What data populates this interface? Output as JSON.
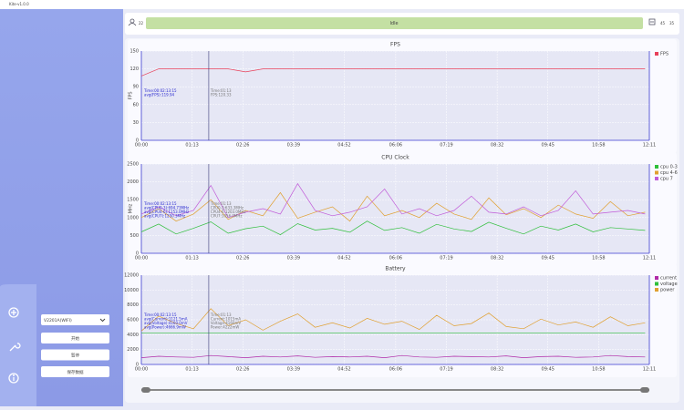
{
  "window": {
    "title": "Kite-v1.0.0"
  },
  "topbar": {
    "status": "Idle",
    "left_value": "22",
    "right_values": [
      "45",
      "35"
    ]
  },
  "sidebar": {
    "device": "V2201A(WIFI)",
    "buttons": [
      "开始",
      "暂停",
      "保存数据"
    ]
  },
  "chart_data": [
    {
      "type": "line",
      "title": "FPS",
      "ylabel": "FPS",
      "ylim": [
        0,
        150
      ],
      "yticks": [
        0,
        30,
        60,
        90,
        120,
        150
      ],
      "xlim": [
        0,
        731
      ],
      "xticks": [
        {
          "value": 0,
          "label": "00:00"
        },
        {
          "value": 73,
          "label": "01:13"
        },
        {
          "value": 146,
          "label": "02:26"
        },
        {
          "value": 219,
          "label": "03:39"
        },
        {
          "value": 292,
          "label": "04:52"
        },
        {
          "value": 366,
          "label": "06:06"
        },
        {
          "value": 439,
          "label": "07:19"
        },
        {
          "value": 512,
          "label": "08:32"
        },
        {
          "value": 585,
          "label": "09:45"
        },
        {
          "value": 658,
          "label": "10:58"
        },
        {
          "value": 731,
          "label": "12:11"
        }
      ],
      "cursor": 97,
      "grid": true,
      "x": [
        0,
        25,
        50,
        75,
        100,
        125,
        150,
        175,
        200,
        225,
        250,
        275,
        300,
        325,
        350,
        375,
        400,
        425,
        450,
        475,
        500,
        525,
        550,
        575,
        600,
        625,
        650,
        675,
        700,
        725
      ],
      "series": [
        {
          "name": "FPS",
          "color": "#e8405a",
          "values": [
            108,
            120,
            120,
            120,
            120,
            120,
            115,
            120,
            120,
            120,
            120,
            120,
            120,
            120,
            120,
            120,
            120,
            120,
            120,
            120,
            120,
            120,
            120,
            120,
            120,
            120,
            120,
            120,
            120,
            120
          ]
        }
      ],
      "annotations": [
        [
          "Time:00:02:13:15",
          "avg(FPS):119.94"
        ],
        [
          "Time:01:13",
          "FPS:120.33"
        ]
      ]
    },
    {
      "type": "line",
      "title": "CPU Clock",
      "ylabel": "MHz",
      "ylim": [
        0,
        2500
      ],
      "yticks": [
        0,
        500,
        1000,
        1500,
        2000,
        2500
      ],
      "xlim": [
        0,
        731
      ],
      "xticks": [
        {
          "value": 0,
          "label": "00:00"
        },
        {
          "value": 73,
          "label": "01:13"
        },
        {
          "value": 146,
          "label": "02:26"
        },
        {
          "value": 219,
          "label": "03:39"
        },
        {
          "value": 292,
          "label": "04:52"
        },
        {
          "value": 366,
          "label": "06:06"
        },
        {
          "value": 439,
          "label": "07:19"
        },
        {
          "value": 512,
          "label": "08:32"
        },
        {
          "value": 585,
          "label": "09:45"
        },
        {
          "value": 658,
          "label": "10:58"
        },
        {
          "value": 731,
          "label": "12:11"
        }
      ],
      "cursor": 97,
      "grid": true,
      "x": [
        0,
        25,
        50,
        75,
        100,
        125,
        150,
        175,
        200,
        225,
        250,
        275,
        300,
        325,
        350,
        375,
        400,
        425,
        450,
        475,
        500,
        525,
        550,
        575,
        600,
        625,
        650,
        675,
        700,
        725
      ],
      "series": [
        {
          "name": "cpu 0-3",
          "color": "#2fbf3a",
          "values": [
            600,
            820,
            540,
            700,
            880,
            560,
            690,
            760,
            520,
            830,
            650,
            700,
            590,
            900,
            640,
            720,
            560,
            810,
            680,
            610,
            870,
            700,
            540,
            760,
            650,
            820,
            600,
            720,
            680,
            640
          ]
        },
        {
          "name": "cpu 4-6",
          "color": "#e0a030",
          "values": [
            1000,
            1250,
            900,
            1100,
            1500,
            950,
            1200,
            1050,
            1700,
            980,
            1150,
            1300,
            900,
            1600,
            1050,
            1200,
            1000,
            1400,
            1100,
            950,
            1550,
            1080,
            1250,
            1000,
            1350,
            1100,
            980,
            1450,
            1050,
            1150
          ]
        },
        {
          "name": "cpu 7",
          "color": "#c05ad8",
          "values": [
            1100,
            1300,
            1050,
            1200,
            1900,
            1000,
            1150,
            1250,
            1100,
            1950,
            1200,
            1050,
            1150,
            1300,
            1800,
            1100,
            1250,
            1050,
            1200,
            1600,
            1150,
            1100,
            1300,
            1050,
            1200,
            1750,
            1100,
            1150,
            1200,
            1100
          ]
        }
      ],
      "annotations": [
        [
          "Time:00:02:13:15",
          "avg(CPU0-3):694.73MHz",
          "avg(CPU4-6):1153.0MHz",
          "avg(CPU7):1250.3MHz"
        ],
        [
          "Time:01:13",
          "CPU0-3:633.3MHz",
          "CPU4-6:1203.0MHz",
          "CPU7:1056.0MHz"
        ]
      ]
    },
    {
      "type": "line",
      "title": "Battery",
      "ylim": [
        0,
        12000
      ],
      "yticks": [
        0,
        2000,
        4000,
        6000,
        8000,
        10000,
        12000
      ],
      "xlim": [
        0,
        731
      ],
      "xticks": [
        {
          "value": 0,
          "label": "00:00"
        },
        {
          "value": 73,
          "label": "01:13"
        },
        {
          "value": 146,
          "label": "02:26"
        },
        {
          "value": 219,
          "label": "03:39"
        },
        {
          "value": 292,
          "label": "04:52"
        },
        {
          "value": 366,
          "label": "06:06"
        },
        {
          "value": 439,
          "label": "07:19"
        },
        {
          "value": 512,
          "label": "08:32"
        },
        {
          "value": 585,
          "label": "09:45"
        },
        {
          "value": 658,
          "label": "10:58"
        },
        {
          "value": 731,
          "label": "12:11"
        }
      ],
      "cursor": 97,
      "grid": true,
      "x": [
        0,
        25,
        50,
        75,
        100,
        125,
        150,
        175,
        200,
        225,
        250,
        275,
        300,
        325,
        350,
        375,
        400,
        425,
        450,
        475,
        500,
        525,
        550,
        575,
        600,
        625,
        650,
        675,
        700,
        725
      ],
      "series": [
        {
          "name": "current",
          "color": "#b02aa8",
          "values": [
            900,
            1100,
            1000,
            950,
            1200,
            1050,
            900,
            1100,
            1000,
            1150,
            950,
            1050,
            1000,
            1100,
            900,
            1200,
            1000,
            950,
            1100,
            1050,
            1000,
            1150,
            900,
            1050,
            1100,
            950,
            1000,
            1200,
            1050,
            1000
          ]
        },
        {
          "name": "voltage",
          "color": "#2fbf3a",
          "values": [
            4200,
            4200,
            4200,
            4200,
            4200,
            4200,
            4200,
            4200,
            4200,
            4200,
            4200,
            4200,
            4200,
            4200,
            4200,
            4200,
            4200,
            4200,
            4200,
            4200,
            4200,
            4200,
            4200,
            4200,
            4200,
            4200,
            4200,
            4200,
            4200,
            4200
          ]
        },
        {
          "name": "power",
          "color": "#e0a030",
          "values": [
            4500,
            6500,
            5500,
            4800,
            7500,
            5200,
            6000,
            4600,
            5800,
            6800,
            5000,
            5600,
            4900,
            6200,
            5400,
            5800,
            4700,
            6600,
            5200,
            5500,
            6900,
            5100,
            4800,
            6100,
            5300,
            5700,
            5000,
            6400,
            5200,
            5600
          ]
        }
      ],
      "annotations": [
        [
          "Time:00:02:13:15",
          "avg(Current):1121.5mA",
          "avg(Voltage):4160.0mV",
          "avg(Power):4666.9mW"
        ],
        [
          "Time:01:13",
          "Current:1015mA",
          "Voltage:4160mV",
          "Power:4222mW"
        ]
      ]
    }
  ]
}
